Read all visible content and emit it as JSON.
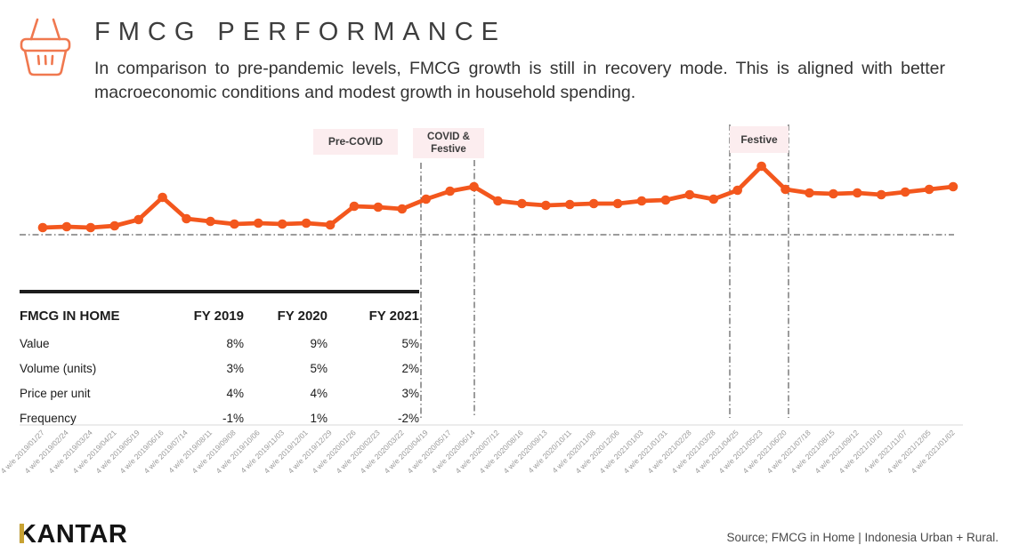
{
  "header": {
    "title": "FMCG PERFORMANCE",
    "subtitle": "In comparison to pre-pandemic levels, FMCG growth is still in recovery mode. This is aligned with better macroeconomic conditions and modest growth in household spending.",
    "icon": "shopping-basket-icon",
    "icon_color": "#F0784F"
  },
  "chart_data": {
    "type": "line",
    "title": "",
    "xlabel": "",
    "ylabel": "",
    "x": [
      "4 w/e 2019/01/27",
      "4 w/e 2019/02/24",
      "4 w/e 2019/03/24",
      "4 w/e 2019/04/21",
      "4 w/e 2019/05/19",
      "4 w/e 2019/06/16",
      "4 w/e 2019/07/14",
      "4 w/e 2019/08/11",
      "4 w/e 2019/09/08",
      "4 w/e 2019/10/06",
      "4 w/e 2019/11/03",
      "4 w/e 2019/12/01",
      "4 w/e 2019/12/29",
      "4 w/e 2020/01/26",
      "4 w/e 2020/02/23",
      "4 w/e 2020/03/22",
      "4 w/e 2020/04/19",
      "4 w/e 2020/05/17",
      "4 w/e 2020/06/14",
      "4 w/e 2020/07/12",
      "4 w/e 2020/08/16",
      "4 w/e 2020/09/13",
      "4 w/e 2020/10/11",
      "4 w/e 2020/11/08",
      "4 w/e 2020/12/06",
      "4 w/e 2021/01/03",
      "4 w/e 2021/01/31",
      "4 w/e 2021/02/28",
      "4 w/e 2021/03/28",
      "4 w/e 2021/04/25",
      "4 w/e 2021/05/23",
      "4 w/e 2021/06/20",
      "4 w/e 2021/07/18",
      "4 w/e 2021/08/15",
      "4 w/e 2021/09/12",
      "4 w/e 2021/10/10",
      "4 w/e 2021/11/07",
      "4 w/e 2021/12/05",
      "4 w/e 2021/01/02"
    ],
    "values": [
      8,
      9,
      8,
      10,
      17,
      42,
      18,
      15,
      12,
      13,
      12,
      13,
      11,
      32,
      31,
      29,
      40,
      49,
      54,
      38,
      35,
      33,
      34,
      35,
      35,
      38,
      39,
      45,
      40,
      50,
      77,
      51,
      47,
      46,
      47,
      45,
      48,
      51,
      54
    ],
    "value_note": "no y-axis shown in source; values are relative units above the dash-dot baseline (baseline = 0)",
    "ylim": [
      0,
      100
    ],
    "grid": false,
    "legend": false,
    "x_tick_rotation": 45,
    "line_color": "#F3571D",
    "annotations": [
      {
        "label": "Pre-COVID"
      },
      {
        "label": "COVID & Festive"
      },
      {
        "label": "Festive"
      }
    ],
    "annotation_bg": "#FCEDEF"
  },
  "table": {
    "header": [
      "FMCG IN HOME",
      "FY 2019",
      "FY 2020",
      "FY 2021"
    ],
    "rows": [
      {
        "label": "Value",
        "values": [
          "8%",
          "9%",
          "5%"
        ]
      },
      {
        "label": "Volume (units)",
        "values": [
          "3%",
          "5%",
          "2%"
        ]
      },
      {
        "label": "Price per unit",
        "values": [
          "4%",
          "4%",
          "3%"
        ]
      },
      {
        "label": "Frequency",
        "values": [
          "-1%",
          "1%",
          "-2%"
        ]
      }
    ]
  },
  "footer": {
    "logo": "KANTAR",
    "logo_accent_color": "#C8A233",
    "source": "Source; FMCG in Home | Indonesia Urban + Rural."
  }
}
